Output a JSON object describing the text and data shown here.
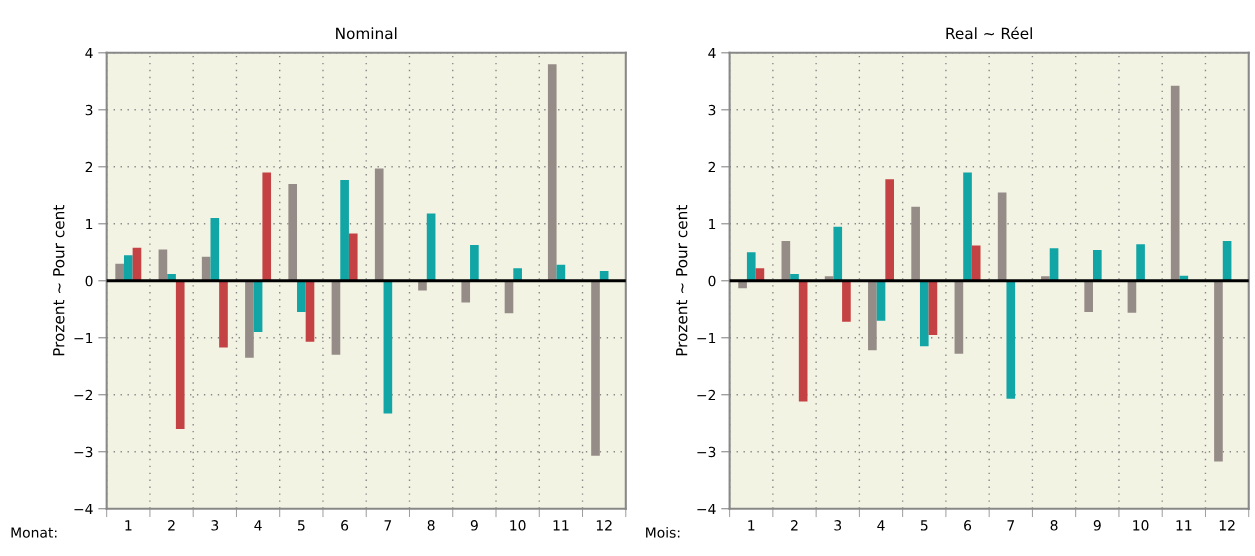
{
  "chart_data": [
    {
      "type": "bar",
      "title": "Nominal",
      "ylabel": "Prozent ~ Pour cent",
      "categories": [
        "1",
        "2",
        "3",
        "4",
        "5",
        "6",
        "7",
        "8",
        "9",
        "10",
        "11",
        "12"
      ],
      "annotations": [
        "Monat:"
      ],
      "series": [
        {
          "color": "#968c87",
          "values": [
            0.3,
            0.55,
            0.42,
            -1.35,
            1.7,
            -1.3,
            1.97,
            -0.17,
            -0.38,
            -0.57,
            3.8,
            -3.07
          ]
        },
        {
          "color": "#12a5a5",
          "values": [
            0.45,
            0.12,
            1.1,
            -0.9,
            -0.55,
            1.77,
            -2.33,
            1.18,
            0.63,
            0.22,
            0.28,
            0.17
          ]
        },
        {
          "color": "#c44243",
          "values": [
            0.58,
            -2.6,
            -1.17,
            1.9,
            -1.07,
            0.83,
            null,
            null,
            null,
            null,
            null,
            null
          ]
        }
      ],
      "ylim": [
        -4,
        4
      ],
      "yticks": [
        4,
        3,
        2,
        1,
        0,
        {
          "value": -1,
          "label": "−1"
        },
        {
          "value": -2,
          "label": "−2"
        },
        {
          "value": -3,
          "label": "−3"
        },
        {
          "value": -4,
          "label": "−4"
        }
      ],
      "ref_lines": [
        {
          "axis": "y",
          "value": 0,
          "color": "#000000"
        }
      ],
      "grid": true,
      "legend": false
    },
    {
      "type": "bar",
      "title": "Real ~ Réel",
      "ylabel": "Prozent ~ Pour cent",
      "categories": [
        "1",
        "2",
        "3",
        "4",
        "5",
        "6",
        "7",
        "8",
        "9",
        "10",
        "11",
        "12"
      ],
      "annotations": [
        "Mois:"
      ],
      "series": [
        {
          "color": "#968c87",
          "values": [
            -0.13,
            0.7,
            0.08,
            -1.22,
            1.3,
            -1.28,
            1.55,
            0.08,
            -0.55,
            -0.56,
            3.42,
            -3.17
          ]
        },
        {
          "color": "#12a5a5",
          "values": [
            0.5,
            0.12,
            0.95,
            -0.7,
            -1.15,
            1.9,
            -2.07,
            0.57,
            0.54,
            0.64,
            0.09,
            0.7
          ]
        },
        {
          "color": "#c44243",
          "values": [
            0.22,
            -2.12,
            -0.72,
            1.78,
            -0.95,
            0.62,
            null,
            null,
            null,
            null,
            null,
            null
          ]
        }
      ],
      "ylim": [
        -4,
        4
      ],
      "yticks": [
        4,
        3,
        2,
        1,
        0,
        {
          "value": -1,
          "label": "−1"
        },
        {
          "value": -2,
          "label": "−2"
        },
        {
          "value": -3,
          "label": "−3"
        },
        {
          "value": -4,
          "label": "−4"
        }
      ],
      "ref_lines": [
        {
          "axis": "y",
          "value": 0,
          "color": "#000000"
        }
      ],
      "grid": true,
      "legend": false
    }
  ]
}
